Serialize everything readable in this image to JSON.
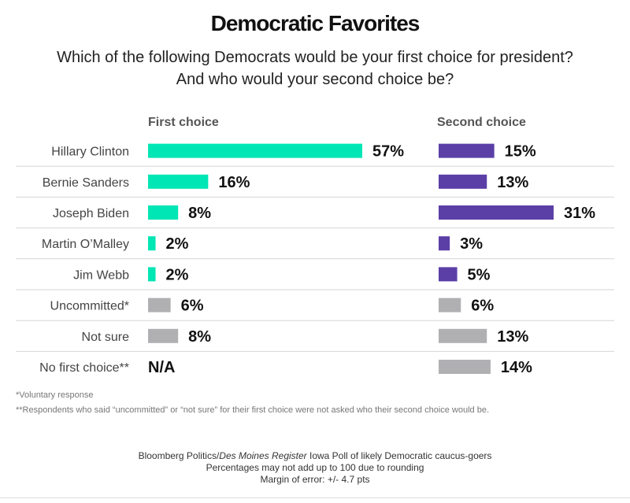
{
  "title": "Democratic Favorites",
  "subtitle_line1": "Which of the following Democrats would be your first choice for president?",
  "subtitle_line2": "And who would your second choice be?",
  "colors": {
    "first_choice": "#00e6b4",
    "second_choice": "#5b3fa6",
    "neutral": "#b0b0b3"
  },
  "chart_data": {
    "type": "bar",
    "orientation": "horizontal",
    "title": "Democratic Favorites",
    "categories": [
      "Hillary Clinton",
      "Bernie Sanders",
      "Joseph Biden",
      "Martin O’Malley",
      "Jim Webb",
      "Uncommitted*",
      "Not sure",
      "No first choice**"
    ],
    "category_kind": [
      "candidate",
      "candidate",
      "candidate",
      "candidate",
      "candidate",
      "neutral",
      "neutral",
      "neutral"
    ],
    "series": [
      {
        "name": "First choice",
        "values": [
          57,
          16,
          8,
          2,
          2,
          6,
          8,
          null
        ],
        "labels": [
          "57%",
          "16%",
          "8%",
          "2%",
          "2%",
          "6%",
          "8%",
          "N/A"
        ]
      },
      {
        "name": "Second choice",
        "values": [
          15,
          13,
          31,
          3,
          5,
          6,
          13,
          14
        ],
        "labels": [
          "15%",
          "13%",
          "31%",
          "3%",
          "5%",
          "6%",
          "13%",
          "14%"
        ]
      }
    ],
    "unit": "%"
  },
  "notes": {
    "voluntary": "*Voluntary response",
    "respondents": "**Respondents who said “uncommitted” or “not sure” for their first choice were not asked who their second choice would be."
  },
  "source": {
    "line1_prefix": "Bloomberg Politics/",
    "line1_italic": "Des Moines Register",
    "line1_suffix": " Iowa Poll of likely Democratic caucus-goers",
    "line2": "Percentages may not add up to 100 due to rounding",
    "line3": "Margin of error: +/- 4.7 pts"
  }
}
